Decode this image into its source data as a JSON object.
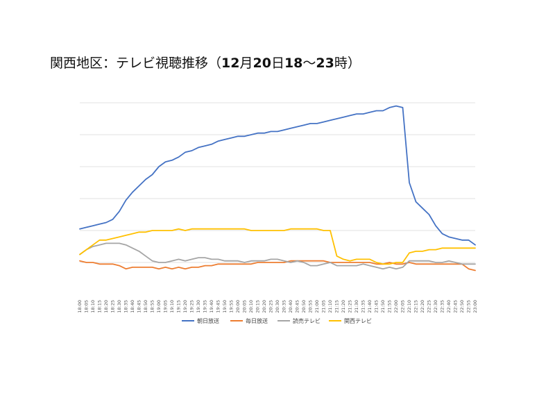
{
  "chart_data": {
    "type": "line",
    "title_parts": [
      "関西地区：テレビ視聴推移（",
      "12",
      "月",
      "20",
      "日",
      "18",
      "〜",
      "23",
      "時）"
    ],
    "ylim": [
      0,
      100
    ],
    "grid": true,
    "legend_position": "bottom",
    "x": [
      "18:00",
      "18:05",
      "18:10",
      "18:15",
      "18:20",
      "18:25",
      "18:30",
      "18:35",
      "18:40",
      "18:45",
      "18:50",
      "18:55",
      "19:00",
      "19:05",
      "19:10",
      "19:15",
      "19:20",
      "19:25",
      "19:30",
      "19:35",
      "19:40",
      "19:45",
      "19:50",
      "19:55",
      "20:00",
      "20:05",
      "20:10",
      "20:15",
      "20:20",
      "20:25",
      "20:30",
      "20:35",
      "20:40",
      "20:45",
      "20:50",
      "20:55",
      "21:00",
      "21:05",
      "21:10",
      "21:15",
      "21:20",
      "21:25",
      "21:30",
      "21:35",
      "21:40",
      "21:45",
      "21:50",
      "21:55",
      "22:00",
      "22:05",
      "22:10",
      "22:15",
      "22:20",
      "22:25",
      "22:30",
      "22:35",
      "22:40",
      "22:45",
      "22:50",
      "22:55",
      "23:00"
    ],
    "series": [
      {
        "name": "朝日放送",
        "color": "#4472C4",
        "values": [
          21,
          22,
          23,
          24,
          25,
          27,
          32,
          39,
          44,
          48,
          52,
          55,
          60,
          63,
          64,
          66,
          69,
          70,
          72,
          73,
          74,
          76,
          77,
          78,
          79,
          79,
          80,
          81,
          81,
          82,
          82,
          83,
          84,
          85,
          86,
          87,
          87,
          88,
          89,
          90,
          91,
          92,
          93,
          93,
          94,
          95,
          95,
          97,
          98,
          97,
          50,
          38,
          34,
          30,
          23,
          18,
          16,
          15,
          14,
          14,
          11
        ]
      },
      {
        "name": "毎日放送",
        "color": "#ED7D31",
        "values": [
          1,
          0,
          0,
          -1,
          -1,
          -1,
          -2,
          -4,
          -3,
          -3,
          -3,
          -3,
          -4,
          -3,
          -4,
          -3,
          -4,
          -3,
          -3,
          -2,
          -2,
          -1,
          -1,
          -1,
          -1,
          -1,
          -1,
          0,
          0,
          0,
          0,
          0,
          1,
          1,
          1,
          1,
          1,
          1,
          0,
          0,
          0,
          0,
          0,
          0,
          0,
          -1,
          -1,
          0,
          -1,
          -1,
          0,
          -1,
          -1,
          -1,
          -1,
          -1,
          -1,
          -1,
          -1,
          -4,
          -5
        ]
      },
      {
        "name": "読売テレビ",
        "color": "#A5A5A5",
        "values": [
          5,
          8,
          10,
          11,
          12,
          12,
          12,
          11,
          9,
          7,
          4,
          1,
          0,
          0,
          1,
          2,
          1,
          2,
          3,
          3,
          2,
          2,
          1,
          1,
          1,
          0,
          1,
          1,
          1,
          2,
          2,
          1,
          0,
          1,
          0,
          -2,
          -2,
          -1,
          0,
          -2,
          -2,
          -2,
          -2,
          -1,
          -2,
          -3,
          -4,
          -3,
          -4,
          -3,
          1,
          1,
          1,
          1,
          0,
          0,
          1,
          0,
          -1,
          -1,
          -1
        ]
      },
      {
        "name": "関西テレビ",
        "color": "#FFC000",
        "values": [
          5,
          8,
          11,
          14,
          14,
          15,
          16,
          17,
          18,
          19,
          19,
          20,
          20,
          20,
          20,
          21,
          20,
          21,
          21,
          21,
          21,
          21,
          21,
          21,
          21,
          21,
          20,
          20,
          20,
          20,
          20,
          20,
          21,
          21,
          21,
          21,
          21,
          20,
          20,
          4,
          2,
          1,
          2,
          2,
          2,
          0,
          -1,
          -1,
          0,
          0,
          6,
          7,
          7,
          8,
          8,
          9,
          9,
          9,
          9,
          9,
          9
        ]
      }
    ]
  }
}
